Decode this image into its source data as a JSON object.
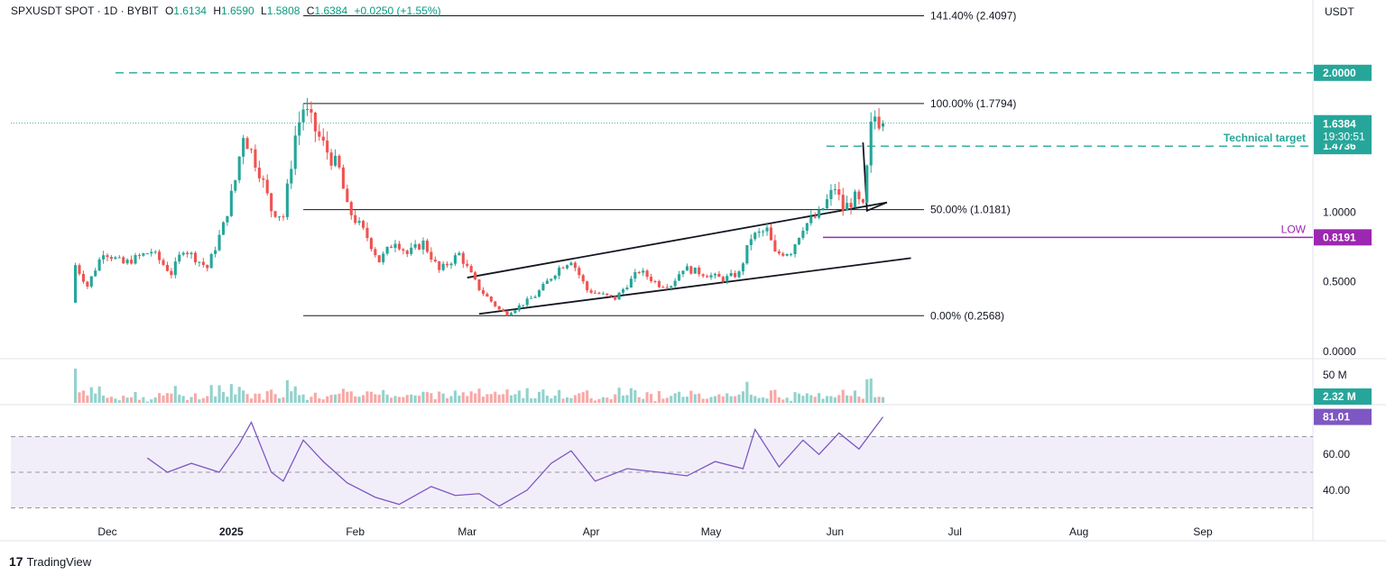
{
  "header": {
    "symbol": "SPXUSDT SPOT · 1D · BYBIT",
    "o_label": "O",
    "o_value": "1.6134",
    "h_label": "H",
    "h_value": "1.6590",
    "l_label": "L",
    "l_value": "1.5808",
    "c_label": "C",
    "c_value": "1.6384",
    "change": "+0.0250 (+1.55%)"
  },
  "currency": "USDT",
  "brand": {
    "logo": "17",
    "name": "TradingView"
  },
  "colors": {
    "up": "#26a69a",
    "down": "#ef5350",
    "target": "#26a69a",
    "low": "#9c27b0",
    "rsi": "#7e57c2"
  },
  "chart_data": {
    "type": "candlestick",
    "symbol": "SPXUSDT",
    "interval": "1D",
    "exchange": "BYBIT",
    "price_axis": {
      "ticks": [
        0.0,
        0.5,
        1.0
      ],
      "tick_labels": [
        "0.0000",
        "0.5000",
        "1.0000"
      ],
      "range": [
        0,
        2.5
      ]
    },
    "time_axis": {
      "labels": [
        "Dec",
        "2025",
        "Feb",
        "Mar",
        "Apr",
        "May",
        "Jun",
        "Jul",
        "Aug",
        "Sep"
      ]
    },
    "fib_levels": [
      {
        "label": "141.40% (2.4097)",
        "value": 2.4097
      },
      {
        "label": "100.00% (1.7794)",
        "value": 1.7794
      },
      {
        "label": "50.00% (1.0181)",
        "value": 1.0181
      },
      {
        "label": "0.00% (0.2568)",
        "value": 0.2568
      }
    ],
    "horizontal_levels": [
      {
        "label": "",
        "value": 2.0,
        "value_label": "2.0000",
        "style": "dashed",
        "color": "#26a69a"
      },
      {
        "label": "Technical target",
        "value": 1.4736,
        "value_label": "1.4736",
        "style": "dashed",
        "color": "#26a69a"
      },
      {
        "label": "LOW",
        "value": 0.8191,
        "value_label": "0.8191",
        "style": "solid",
        "color": "#9c27b0"
      }
    ],
    "last_price": {
      "value": 1.6384,
      "label": "1.6384",
      "countdown": "19:30:51"
    },
    "channel": {
      "upper": [
        [
          "2025-03-01",
          0.53
        ],
        [
          "2025-06-14",
          1.07
        ]
      ],
      "lower": [
        [
          "2025-03-04",
          0.27
        ],
        [
          "2025-06-20",
          0.67
        ]
      ]
    },
    "ohlc_path": [
      [
        "2024-11-22",
        0.35
      ],
      [
        "2024-11-23",
        0.62
      ],
      [
        "2024-11-26",
        0.47
      ],
      [
        "2024-11-30",
        0.72
      ],
      [
        "2024-12-05",
        0.63
      ],
      [
        "2024-12-12",
        0.72
      ],
      [
        "2024-12-17",
        0.56
      ],
      [
        "2024-12-20",
        0.74
      ],
      [
        "2024-12-26",
        0.6
      ],
      [
        "2024-12-30",
        0.9
      ],
      [
        "2025-01-02",
        1.23
      ],
      [
        "2025-01-04",
        1.57
      ],
      [
        "2025-01-08",
        1.3
      ],
      [
        "2025-01-11",
        1.02
      ],
      [
        "2025-01-14",
        0.97
      ],
      [
        "2025-01-17",
        1.55
      ],
      [
        "2025-01-19",
        1.75
      ],
      [
        "2025-01-24",
        1.48
      ],
      [
        "2025-01-28",
        1.3
      ],
      [
        "2025-01-30",
        1.03
      ],
      [
        "2025-02-04",
        0.82
      ],
      [
        "2025-02-07",
        0.65
      ],
      [
        "2025-02-11",
        0.8
      ],
      [
        "2025-02-14",
        0.7
      ],
      [
        "2025-02-18",
        0.78
      ],
      [
        "2025-02-22",
        0.58
      ],
      [
        "2025-02-27",
        0.7
      ],
      [
        "2025-03-04",
        0.45
      ],
      [
        "2025-03-09",
        0.3
      ],
      [
        "2025-03-11",
        0.27
      ],
      [
        "2025-03-18",
        0.4
      ],
      [
        "2025-03-24",
        0.6
      ],
      [
        "2025-03-27",
        0.66
      ],
      [
        "2025-03-31",
        0.44
      ],
      [
        "2025-04-07",
        0.38
      ],
      [
        "2025-04-13",
        0.58
      ],
      [
        "2025-04-18",
        0.48
      ],
      [
        "2025-04-21",
        0.48
      ],
      [
        "2025-04-24",
        0.6
      ],
      [
        "2025-04-29",
        0.56
      ],
      [
        "2025-05-04",
        0.52
      ],
      [
        "2025-05-08",
        0.56
      ],
      [
        "2025-05-11",
        0.82
      ],
      [
        "2025-05-15",
        0.87
      ],
      [
        "2025-05-17",
        0.7
      ],
      [
        "2025-05-21",
        0.72
      ],
      [
        "2025-05-24",
        0.9
      ],
      [
        "2025-05-28",
        0.98
      ],
      [
        "2025-06-01",
        1.18
      ],
      [
        "2025-06-03",
        1.02
      ],
      [
        "2025-06-06",
        1.1
      ],
      [
        "2025-06-08",
        1.03
      ],
      [
        "2025-06-09",
        1.3
      ],
      [
        "2025-06-10",
        1.6
      ],
      [
        "2025-06-11",
        1.69
      ],
      [
        "2025-06-12",
        1.66
      ],
      [
        "2025-06-13",
        1.638
      ]
    ],
    "volume": {
      "axis_label": "50 M",
      "last_label": "2.32 M",
      "last": 2.32,
      "max": 50
    },
    "rsi": {
      "value": 81.01,
      "label": "81.01",
      "axis_ticks": [
        40,
        60
      ],
      "tick_labels": [
        "40.00",
        "60.00"
      ],
      "overbought": 70,
      "oversold": 30,
      "mid": 50,
      "path": [
        [
          "2024-12-11",
          58
        ],
        [
          "2024-12-16",
          50
        ],
        [
          "2024-12-22",
          55
        ],
        [
          "2024-12-29",
          50
        ],
        [
          "2025-01-03",
          66
        ],
        [
          "2025-01-06",
          78
        ],
        [
          "2025-01-11",
          50
        ],
        [
          "2025-01-14",
          45
        ],
        [
          "2025-01-19",
          68
        ],
        [
          "2025-01-24",
          56
        ],
        [
          "2025-01-30",
          44
        ],
        [
          "2025-02-06",
          36
        ],
        [
          "2025-02-12",
          32
        ],
        [
          "2025-02-20",
          42
        ],
        [
          "2025-02-26",
          37
        ],
        [
          "2025-03-04",
          38
        ],
        [
          "2025-03-09",
          31
        ],
        [
          "2025-03-16",
          40
        ],
        [
          "2025-03-22",
          55
        ],
        [
          "2025-03-27",
          62
        ],
        [
          "2025-04-02",
          45
        ],
        [
          "2025-04-10",
          52
        ],
        [
          "2025-04-18",
          50
        ],
        [
          "2025-04-25",
          48
        ],
        [
          "2025-05-02",
          56
        ],
        [
          "2025-05-09",
          52
        ],
        [
          "2025-05-12",
          74
        ],
        [
          "2025-05-18",
          53
        ],
        [
          "2025-05-24",
          68
        ],
        [
          "2025-05-28",
          60
        ],
        [
          "2025-06-02",
          72
        ],
        [
          "2025-06-07",
          63
        ],
        [
          "2025-06-13",
          81
        ]
      ]
    }
  }
}
